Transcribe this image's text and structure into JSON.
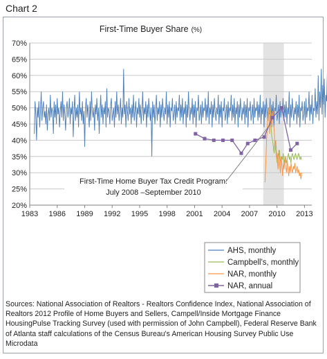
{
  "header": {
    "chart_label": "Chart 2"
  },
  "footer": {
    "sources": "Sources: National Association of Realtors - Realtors Confidence Index, National Association of Realtors 2012 Profile of Home Buyers and Sellers, Campell/Inside Mortgage Finance HousingPulse Tracking Survey (used with permission of John Campbell), Federal Reserve Bank of Atlanta staff calculations of the Census Bureau's American Housing Survey Public Use Microdata"
  },
  "chart_data": {
    "type": "line",
    "title": "First-Time Buyer Share",
    "title_unit": "(%)",
    "xlim": [
      1983,
      2013.8
    ],
    "ylim": [
      20,
      70
    ],
    "x_ticks": [
      1983,
      1986,
      1989,
      1992,
      1995,
      1998,
      2001,
      2004,
      2007,
      2010,
      2013
    ],
    "y_ticks": [
      {
        "v": 20,
        "label": "20%"
      },
      {
        "v": 25,
        "label": "25%"
      },
      {
        "v": 30,
        "label": "30%"
      },
      {
        "v": 35,
        "label": "35%"
      },
      {
        "v": 40,
        "label": "40%"
      },
      {
        "v": 45,
        "label": "45%"
      },
      {
        "v": 50,
        "label": "50%"
      },
      {
        "v": 55,
        "label": "55%"
      },
      {
        "v": 60,
        "label": "60%"
      },
      {
        "v": 65,
        "label": "65%"
      },
      {
        "v": 70,
        "label": "70%"
      }
    ],
    "grid": "horizontal",
    "legend_position": "bottom-right",
    "shaded_period": {
      "x0": 2008.5,
      "x1": 2010.75,
      "color": "#e3e3e3"
    },
    "annotation": {
      "lines": [
        "First-Time Home  Buyer Tax Credit Program:",
        "July 2008 –September  2010"
      ],
      "arrow_to": [
        2009.3,
        45
      ]
    },
    "series": [
      {
        "name": "AHS, monthly",
        "color": "#4f81bd",
        "style": "line",
        "x_start": 1983.5,
        "step": 0.0833333,
        "values": [
          42,
          52,
          48,
          40,
          50,
          47,
          52,
          44,
          49,
          55,
          46,
          50,
          52,
          47,
          49,
          45,
          51,
          43,
          48,
          50,
          46,
          54,
          47,
          50,
          49,
          42,
          52,
          47,
          51,
          45,
          53,
          48,
          50,
          44,
          49,
          52,
          47,
          55,
          46,
          51,
          48,
          43,
          50,
          52,
          47,
          49,
          53,
          45,
          50,
          48,
          52,
          41,
          49,
          54,
          46,
          50,
          47,
          51,
          44,
          55,
          48,
          50,
          46,
          52,
          45,
          49,
          38,
          50,
          53,
          47,
          51,
          48,
          44,
          52,
          46,
          55,
          49,
          47,
          50,
          43,
          51,
          48,
          53,
          46,
          50,
          42,
          49,
          54,
          47,
          51,
          45,
          50,
          48,
          52,
          44,
          56,
          47,
          50,
          49,
          45,
          51,
          53,
          46,
          48,
          50,
          44,
          52,
          47,
          55,
          48,
          51,
          46,
          49,
          53,
          45,
          50,
          47,
          62,
          48,
          51,
          44,
          52,
          49,
          46,
          53,
          48,
          50,
          45,
          51,
          47,
          54,
          46,
          49,
          52,
          44,
          50,
          48,
          53,
          47,
          51,
          45,
          49,
          55,
          46,
          50,
          48,
          52,
          44,
          51,
          47,
          53,
          49,
          46,
          50,
          35,
          52,
          47,
          51,
          45,
          49,
          54,
          46,
          50,
          48,
          52,
          44,
          51,
          47,
          53,
          49,
          46,
          50,
          48,
          55,
          45,
          51,
          47,
          52,
          44,
          50,
          49,
          53,
          46,
          48,
          51,
          45,
          52,
          47,
          50,
          49,
          54,
          46,
          51,
          47,
          53,
          45,
          50,
          48,
          52,
          44,
          51,
          47,
          55,
          49,
          46,
          50,
          48,
          53,
          45,
          51,
          47,
          52,
          44,
          50,
          49,
          54,
          46,
          48,
          51,
          45,
          52,
          47,
          50,
          49,
          53,
          46,
          51,
          47,
          55,
          45,
          50,
          48,
          52,
          44,
          51,
          47,
          53,
          49,
          46,
          50,
          48,
          54,
          45,
          51,
          47,
          52,
          44,
          50,
          49,
          53,
          46,
          48,
          51,
          45,
          52,
          47,
          50,
          49,
          54,
          46,
          51,
          47,
          53,
          45,
          50,
          48,
          52,
          44,
          51,
          47,
          53,
          49,
          46,
          50,
          48,
          52,
          45,
          51,
          47,
          53,
          44,
          50,
          49,
          52,
          46,
          48,
          51,
          45,
          53,
          47,
          50,
          49,
          52,
          46,
          51,
          47,
          54,
          45,
          50,
          48,
          52,
          44,
          51,
          47,
          53,
          49,
          46,
          50,
          48,
          53,
          45,
          51,
          47,
          52,
          44,
          50,
          49,
          54,
          46,
          48,
          51,
          45,
          52,
          47,
          50,
          49,
          53,
          46,
          51,
          47,
          52,
          45,
          50,
          48,
          55,
          44,
          51,
          47,
          53,
          49,
          46,
          50,
          48,
          52,
          45,
          51,
          47,
          54,
          44,
          50,
          49,
          52,
          46,
          48,
          52,
          45,
          53,
          47,
          50,
          49,
          55,
          46,
          51,
          48,
          54,
          45,
          50,
          49,
          56,
          47,
          52,
          48,
          60,
          46,
          55,
          50,
          62,
          48,
          57,
          51,
          59,
          47,
          54,
          52,
          61,
          49,
          56,
          50,
          58,
          48,
          53,
          51,
          57,
          49,
          55,
          50,
          48,
          53,
          52,
          55
        ]
      },
      {
        "name": "Campbell's, monthly",
        "color": "#9bbb59",
        "style": "line",
        "x_start": 2009.1,
        "step": 0.0833333,
        "values": [
          48,
          50,
          46,
          44,
          41,
          40,
          38,
          36,
          40,
          37,
          35,
          33,
          36,
          35,
          37,
          34,
          33,
          35,
          34,
          36,
          33,
          34,
          35,
          33,
          34,
          35,
          36,
          34,
          35,
          33,
          35,
          36,
          35,
          34,
          35,
          36,
          35,
          34,
          35,
          36,
          35,
          34,
          35,
          34
        ]
      },
      {
        "name": "NAR, monthly",
        "color": "#f79646",
        "style": "line",
        "x_start": 2008.7,
        "step": 0.0833333,
        "values": [
          27,
          33,
          40,
          45,
          50,
          47,
          42,
          51,
          46,
          44,
          49,
          45,
          43,
          38,
          40,
          36,
          34,
          31,
          37,
          33,
          30,
          35,
          32,
          29,
          33,
          31,
          35,
          32,
          30,
          34,
          31,
          29,
          32,
          30,
          33,
          31,
          30,
          32,
          31,
          33,
          30,
          31,
          32,
          30,
          31,
          29,
          30,
          28,
          30
        ]
      },
      {
        "name": "NAR, annual",
        "color": "#8064a2",
        "style": "line-marker",
        "points": [
          [
            2001.1,
            42
          ],
          [
            2002.1,
            40.5
          ],
          [
            2003.1,
            40
          ],
          [
            2004.1,
            40
          ],
          [
            2005.1,
            40
          ],
          [
            2006.1,
            36
          ],
          [
            2006.8,
            39
          ],
          [
            2007.6,
            40
          ],
          [
            2008.6,
            41
          ],
          [
            2009.5,
            47
          ],
          [
            2010.5,
            50
          ],
          [
            2011.5,
            37
          ],
          [
            2012.2,
            39
          ]
        ]
      }
    ]
  }
}
